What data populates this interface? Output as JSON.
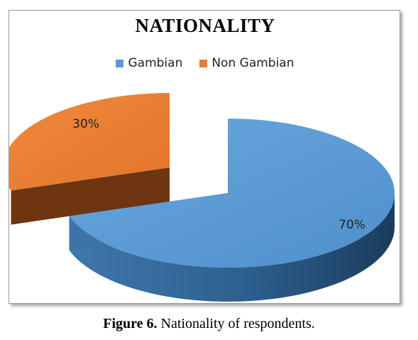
{
  "chart_data": {
    "type": "pie",
    "title": "NATIONALITY",
    "categories": [
      "Gambian",
      "Non Gambian"
    ],
    "values": [
      70,
      30
    ],
    "data_labels": [
      "70%",
      "30%"
    ],
    "colors": [
      "#5b9bd5",
      "#ed7d31"
    ],
    "style": "3d-exploded",
    "legend_position": "top"
  },
  "caption": {
    "label": "Figure 6.",
    "text": " Nationality of respondents."
  }
}
